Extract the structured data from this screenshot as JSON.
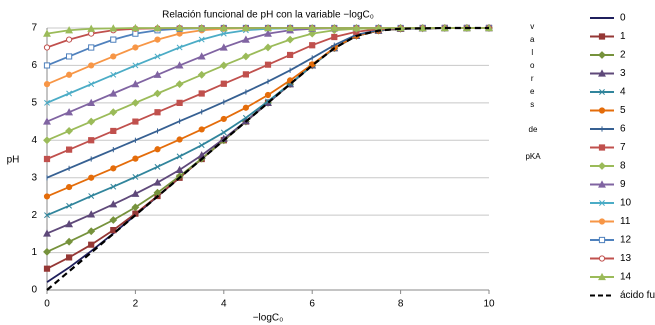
{
  "chart_data": {
    "type": "line",
    "title": "Relación funcional de pH con la variable −logC₀",
    "x_label": "−logC₀",
    "y_label": "pH",
    "side_label": [
      "valores",
      "de",
      "pKA"
    ],
    "x": [
      0,
      0.5,
      1,
      1.5,
      2,
      2.5,
      3,
      3.5,
      4,
      4.5,
      5,
      5.5,
      6,
      6.5,
      7,
      7.5,
      8,
      8.5,
      9,
      9.5,
      10
    ],
    "xlim": [
      0,
      10
    ],
    "xticks": [
      0,
      2,
      4,
      6,
      8,
      10
    ],
    "ylim": [
      0,
      7
    ],
    "yticks": [
      0,
      1,
      2,
      3,
      4,
      5,
      6,
      7
    ],
    "grid": true,
    "legend": "right",
    "series": [
      {
        "name": "0",
        "color": "#1f1f5c",
        "marker": "none",
        "values": [
          0.21,
          0.6,
          1.04,
          1.51,
          2.0,
          2.5,
          3,
          3.5,
          4,
          4.5,
          5,
          5.5,
          6.0,
          6.46,
          6.79,
          6.93,
          6.98,
          6.99,
          7,
          7,
          7
        ]
      },
      {
        "name": "1",
        "color": "#953735",
        "marker": "square",
        "values": [
          0.57,
          0.87,
          1.21,
          1.6,
          2.04,
          2.51,
          3.0,
          3.5,
          4,
          4.5,
          5,
          5.5,
          6.0,
          6.46,
          6.79,
          6.93,
          6.98,
          6.99,
          7,
          7,
          7
        ]
      },
      {
        "name": "2",
        "color": "#76923c",
        "marker": "diamond",
        "values": [
          1.02,
          1.29,
          1.57,
          1.87,
          2.21,
          2.6,
          3.04,
          3.51,
          4.0,
          4.5,
          5,
          5.5,
          6.0,
          6.46,
          6.79,
          6.93,
          6.98,
          6.99,
          7,
          7,
          7
        ]
      },
      {
        "name": "3",
        "color": "#5f497a",
        "marker": "triangle",
        "values": [
          1.51,
          1.76,
          2.02,
          2.29,
          2.57,
          2.87,
          3.21,
          3.6,
          4.04,
          4.51,
          5.0,
          5.5,
          6.0,
          6.46,
          6.79,
          6.93,
          6.98,
          6.99,
          7,
          7,
          7
        ]
      },
      {
        "name": "4",
        "color": "#31859c",
        "marker": "x",
        "values": [
          2.0,
          2.25,
          2.51,
          2.76,
          3.02,
          3.29,
          3.57,
          3.87,
          4.21,
          4.6,
          5.04,
          5.51,
          6.0,
          6.46,
          6.79,
          6.93,
          6.98,
          6.99,
          7,
          7,
          7
        ]
      },
      {
        "name": "5",
        "color": "#e46c0a",
        "marker": "circle",
        "values": [
          2.5,
          2.75,
          3.0,
          3.25,
          3.51,
          3.76,
          4.02,
          4.29,
          4.57,
          4.87,
          5.21,
          5.6,
          6.03,
          6.47,
          6.79,
          6.93,
          6.98,
          6.99,
          7,
          7,
          7
        ]
      },
      {
        "name": "6",
        "color": "#366092",
        "marker": "plus",
        "values": [
          3.0,
          3.25,
          3.5,
          3.75,
          4.0,
          4.25,
          4.51,
          4.76,
          5.02,
          5.29,
          5.57,
          5.87,
          6.2,
          6.54,
          6.82,
          6.94,
          6.98,
          6.99,
          7,
          7,
          7
        ]
      },
      {
        "name": "7",
        "color": "#c0504d",
        "marker": "square",
        "values": [
          3.5,
          3.75,
          4.0,
          4.25,
          4.5,
          4.75,
          5.0,
          5.25,
          5.51,
          5.76,
          6.02,
          6.28,
          6.54,
          6.76,
          6.9,
          6.97,
          6.99,
          7,
          7,
          7,
          7
        ]
      },
      {
        "name": "8",
        "color": "#9bbb59",
        "marker": "diamond",
        "values": [
          4.0,
          4.25,
          4.5,
          4.75,
          5.0,
          5.25,
          5.5,
          5.75,
          6.0,
          6.24,
          6.48,
          6.69,
          6.85,
          6.94,
          6.98,
          6.99,
          7,
          7,
          7,
          7,
          7
        ]
      },
      {
        "name": "9",
        "color": "#8064a2",
        "marker": "triangle",
        "values": [
          4.5,
          4.75,
          5.0,
          5.25,
          5.5,
          5.75,
          6.0,
          6.24,
          6.48,
          6.69,
          6.85,
          6.94,
          6.98,
          6.99,
          7,
          7,
          7,
          7,
          7,
          7,
          7
        ]
      },
      {
        "name": "10",
        "color": "#4bacc6",
        "marker": "x",
        "values": [
          5.0,
          5.25,
          5.5,
          5.75,
          6.0,
          6.24,
          6.48,
          6.69,
          6.85,
          6.94,
          6.98,
          6.99,
          7,
          7,
          7,
          7,
          7,
          7,
          7,
          7,
          7
        ]
      },
      {
        "name": "11",
        "color": "#f79646",
        "marker": "circle",
        "values": [
          5.5,
          5.75,
          6.0,
          6.24,
          6.48,
          6.69,
          6.85,
          6.94,
          6.98,
          6.99,
          7,
          7,
          7,
          7,
          7,
          7,
          7,
          7,
          7,
          7,
          7
        ]
      },
      {
        "name": "12",
        "color": "#4f81bd",
        "marker": "open-square",
        "values": [
          6.0,
          6.24,
          6.48,
          6.69,
          6.85,
          6.94,
          6.98,
          6.99,
          7,
          7,
          7,
          7,
          7,
          7,
          7,
          7,
          7,
          7,
          7,
          7,
          7
        ]
      },
      {
        "name": "13",
        "color": "#c0504d",
        "marker": "open-circle",
        "values": [
          6.48,
          6.69,
          6.85,
          6.94,
          6.98,
          6.99,
          7,
          7,
          7,
          7,
          7,
          7,
          7,
          7,
          7,
          7,
          7,
          7,
          7,
          7,
          7
        ]
      },
      {
        "name": "14",
        "color": "#9bbb59",
        "marker": "triangle",
        "values": [
          6.85,
          6.94,
          6.98,
          6.99,
          7,
          7,
          7,
          7,
          7,
          7,
          7,
          7,
          7,
          7,
          7,
          7,
          7,
          7,
          7,
          7,
          7
        ]
      },
      {
        "name": "ácido fuerte",
        "color": "#000000",
        "marker": "none",
        "line_style": "dashed",
        "values": [
          0,
          0.5,
          1,
          1.5,
          2,
          2.5,
          3,
          3.5,
          4,
          4.5,
          5,
          5.5,
          6.0,
          6.46,
          6.79,
          6.93,
          6.98,
          6.99,
          7,
          7,
          7
        ]
      }
    ]
  }
}
